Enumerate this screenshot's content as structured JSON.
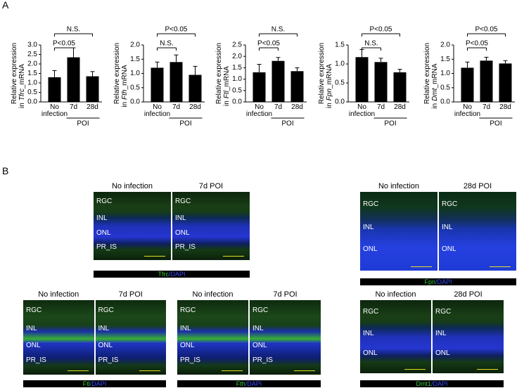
{
  "panel_labels": {
    "a": "A",
    "b": "B"
  },
  "chart_data": [
    {
      "type": "bar",
      "y_label": {
        "line1": "Relative expression",
        "prefix": "in",
        "gene": "Tfrc",
        "suffix": "_mRNA"
      },
      "categories": [
        "No infection",
        "7d",
        "28d"
      ],
      "group_label": "POI",
      "values": [
        1.3,
        2.35,
        1.35
      ],
      "errors": [
        0.35,
        0.5,
        0.25
      ],
      "color": "#000000",
      "ylim": [
        0,
        3
      ],
      "yticks": [
        {
          "value": 0,
          "label": "0.0"
        },
        0.5,
        {
          "value": 1,
          "label": "1.0"
        },
        1.5,
        {
          "value": 2,
          "label": "2.0"
        },
        2.5,
        {
          "value": 3,
          "label": "3.0"
        }
      ],
      "annotations": [
        "P<0.05",
        "N.S."
      ]
    },
    {
      "type": "bar",
      "y_label": {
        "line1": "Relative expression",
        "prefix": "in",
        "gene": "Fth",
        "suffix": "_mRNA"
      },
      "categories": [
        "No infection",
        "7d",
        "28d"
      ],
      "group_label": "POI",
      "values": [
        1.2,
        1.4,
        0.95
      ],
      "errors": [
        0.2,
        0.25,
        0.3
      ],
      "color": "#000000",
      "ylim": [
        0,
        2
      ],
      "yticks": [
        {
          "value": 0,
          "label": "0.0"
        },
        0.5,
        {
          "value": 1,
          "label": "1.0"
        },
        1.5,
        {
          "value": 2,
          "label": "2.0"
        }
      ],
      "annotations": [
        "N.S.",
        "P<0.05"
      ]
    },
    {
      "type": "bar",
      "y_label": {
        "line1": "Relative expression",
        "prefix": "in",
        "gene": "Ftl",
        "suffix": "_mRNA"
      },
      "categories": [
        "No infection",
        "7d",
        "28d"
      ],
      "group_label": "POI",
      "values": [
        1.3,
        1.8,
        1.35
      ],
      "errors": [
        0.35,
        0.15,
        0.15
      ],
      "color": "#000000",
      "ylim": [
        0,
        2.5
      ],
      "yticks": [
        {
          "value": 0,
          "label": "0.0"
        },
        0.5,
        {
          "value": 1,
          "label": "1.0"
        },
        1.5,
        {
          "value": 2,
          "label": "2.0"
        },
        2.5
      ],
      "annotations": [
        "P<0.05",
        "N.S."
      ]
    },
    {
      "type": "bar",
      "y_label": {
        "line1": "Relative expression",
        "prefix": "in",
        "gene": "Fpn",
        "suffix": "_mRNA"
      },
      "categories": [
        "No infection",
        "7d",
        "28d"
      ],
      "group_label": "POI",
      "values": [
        1.18,
        1.05,
        0.78
      ],
      "errors": [
        0.2,
        0.1,
        0.08
      ],
      "color": "#000000",
      "ylim": [
        0,
        1.5
      ],
      "yticks": [
        {
          "value": 0,
          "label": "0.0"
        },
        0.5,
        {
          "value": 1,
          "label": "1.0"
        },
        1.5
      ],
      "annotations": [
        "N.S.",
        "P<0.05"
      ]
    },
    {
      "type": "bar",
      "y_label": {
        "line1": "Relative expression",
        "prefix": "in",
        "gene": "Dmt",
        "suffix": "_mRNA"
      },
      "categories": [
        "No infection",
        "7d",
        "28d"
      ],
      "group_label": "POI",
      "values": [
        1.2,
        1.45,
        1.35
      ],
      "errors": [
        0.2,
        0.12,
        0.1
      ],
      "color": "#000000",
      "ylim": [
        0,
        2
      ],
      "yticks": [
        {
          "value": 0,
          "label": "0.0"
        },
        0.5,
        {
          "value": 1,
          "label": "1.0"
        },
        1.5,
        {
          "value": 2,
          "label": "2.0"
        }
      ],
      "annotations": [
        "P<0.05",
        "P<0.05"
      ]
    }
  ],
  "images": [
    {
      "headers": [
        "No infection",
        "7d POI"
      ],
      "layers": [
        [
          "RGC",
          "INL",
          "ONL",
          "PR_IS"
        ],
        [
          "RGC",
          "INL",
          "ONL",
          "PR_IS"
        ]
      ],
      "caption": {
        "marker": "Tfrc",
        "stain": "/DAPI"
      }
    },
    {
      "headers": [
        "No infection",
        "28d POI"
      ],
      "layers": [
        [
          "RGC",
          "INL",
          "ONL"
        ],
        [
          "RGC",
          "INL",
          "ONL"
        ]
      ],
      "caption": {
        "marker": "Fpn",
        "stain": "/DAPI"
      }
    },
    {
      "headers": [
        "No infection",
        "7d POI"
      ],
      "layers": [
        [
          "RGC",
          "INL",
          "ONL",
          "PR_IS"
        ],
        [
          "RGC",
          "INL",
          "ONL",
          "PR_IS"
        ]
      ],
      "caption": {
        "marker": "Ftl",
        "stain": "/DAPI"
      }
    },
    {
      "headers": [
        "No infection",
        "7d POI"
      ],
      "layers": [
        [
          "RGC",
          "INL",
          "ONL",
          "PR_IS"
        ],
        [
          "RGC",
          "INL",
          "ONL",
          "PR_IS"
        ]
      ],
      "caption": {
        "marker": "Fth",
        "stain": "/DAPI"
      }
    },
    {
      "headers": [
        "No infection",
        "28d POI"
      ],
      "layers": [
        [
          "RGC",
          "INL",
          "ONL"
        ],
        [
          "RGC",
          "INL",
          "ONL"
        ]
      ],
      "caption": {
        "marker": "Dmt1",
        "stain": "/DAPI"
      }
    }
  ]
}
